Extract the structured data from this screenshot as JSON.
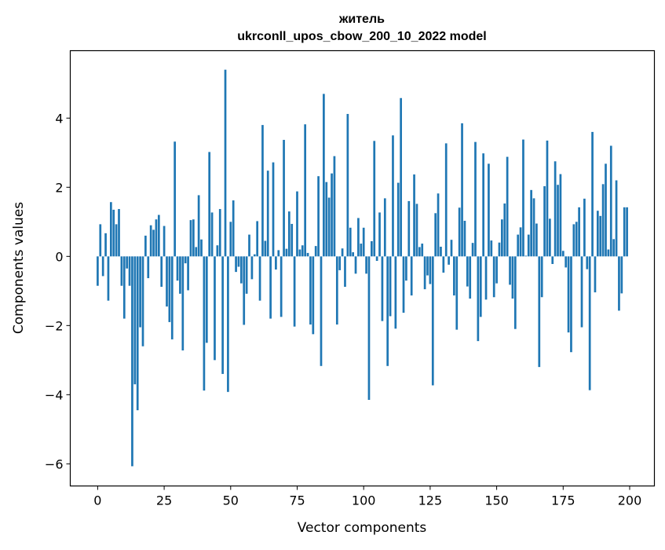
{
  "chart_data": {
    "type": "bar",
    "title": [
      "житель",
      "ukrconll_upos_cbow_200_10_2022 model"
    ],
    "xlabel": "Vector components",
    "ylabel": "Components values",
    "xlim": [
      -10.3,
      209.3
    ],
    "ylim": [
      -6.64,
      5.95
    ],
    "xticks": [
      0,
      25,
      50,
      75,
      100,
      125,
      150,
      175,
      200
    ],
    "xtick_labels": [
      "0",
      "25",
      "50",
      "75",
      "100",
      "125",
      "150",
      "175",
      "200"
    ],
    "yticks": [
      -6,
      -4,
      -2,
      0,
      2,
      4
    ],
    "ytick_labels": [
      "−6",
      "−4",
      "−2",
      "0",
      "2",
      "4"
    ],
    "grid": false,
    "color": "#1f77b4",
    "values": [
      -0.85,
      0.93,
      -0.57,
      0.67,
      -1.28,
      1.57,
      1.35,
      0.93,
      1.37,
      -0.85,
      -1.8,
      -0.35,
      -0.85,
      -6.07,
      -3.7,
      -4.45,
      -2.05,
      -2.6,
      0.6,
      -0.63,
      0.9,
      0.77,
      1.07,
      1.2,
      -0.88,
      0.88,
      -1.45,
      -1.9,
      -2.4,
      3.32,
      -0.7,
      -1.08,
      -2.72,
      -0.2,
      -0.98,
      1.05,
      1.07,
      0.27,
      1.77,
      0.49,
      -3.88,
      -2.5,
      3.02,
      1.27,
      -3.0,
      0.32,
      1.37,
      -3.4,
      5.4,
      -3.92,
      1.0,
      1.62,
      -0.45,
      -0.3,
      -0.78,
      -1.98,
      -1.08,
      0.63,
      -0.66,
      0.06,
      1.02,
      -1.28,
      3.8,
      0.45,
      2.48,
      -1.8,
      2.72,
      -0.38,
      0.18,
      -1.75,
      3.37,
      0.22,
      1.3,
      0.94,
      -2.03,
      1.88,
      0.2,
      0.32,
      3.82,
      0.1,
      -1.97,
      -2.25,
      0.3,
      2.32,
      -3.17,
      4.7,
      2.15,
      1.7,
      2.4,
      2.9,
      -1.97,
      -0.4,
      0.23,
      -0.88,
      4.12,
      0.83,
      0.12,
      -0.5,
      1.11,
      0.37,
      0.83,
      -0.5,
      -4.15,
      0.44,
      3.34,
      -0.13,
      1.27,
      -1.87,
      1.68,
      -3.17,
      -1.73,
      3.5,
      -2.09,
      2.13,
      4.58,
      -1.63,
      -0.7,
      1.6,
      -1.13,
      2.37,
      1.52,
      0.27,
      0.37,
      -0.95,
      -0.55,
      -0.8,
      -3.73,
      1.25,
      1.82,
      0.28,
      -0.47,
      3.27,
      -0.24,
      0.48,
      -1.13,
      -2.12,
      1.41,
      3.85,
      1.03,
      -0.87,
      -1.22,
      0.39,
      3.31,
      -2.45,
      -1.75,
      2.98,
      -1.25,
      2.68,
      0.46,
      -1.18,
      -0.78,
      0.4,
      1.07,
      1.53,
      2.88,
      -0.82,
      -1.22,
      -2.1,
      0.63,
      0.84,
      3.38,
      0.02,
      0.63,
      1.92,
      1.68,
      0.95,
      -3.2,
      -1.18,
      2.03,
      3.35,
      1.09,
      -0.22,
      2.75,
      2.07,
      2.38,
      0.16,
      -0.32,
      -2.2,
      -2.77,
      0.93,
      1.0,
      1.42,
      -2.05,
      1.67,
      -0.37,
      -3.87,
      3.6,
      -1.04,
      1.32,
      1.17,
      2.09,
      2.68,
      0.2,
      3.2,
      0.5,
      2.2,
      -1.57,
      -1.07,
      1.42,
      1.42
    ]
  }
}
